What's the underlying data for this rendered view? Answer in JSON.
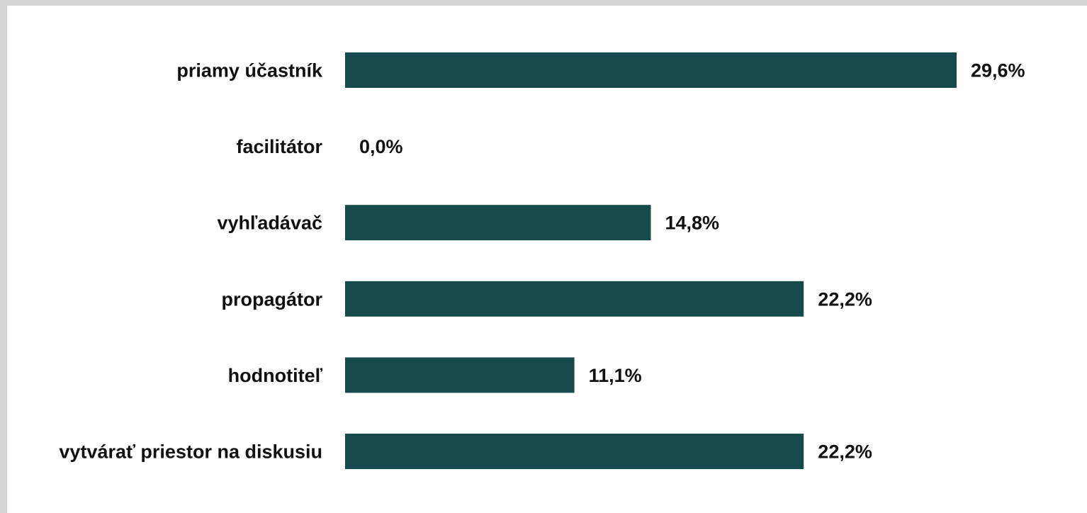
{
  "chart_data": {
    "type": "bar",
    "orientation": "horizontal",
    "categories": [
      "priamy účastník",
      "facilitátor",
      "vyhľadávač",
      "propagátor",
      "hodnotiteľ",
      "vytvárať priestor na diskusiu"
    ],
    "values": [
      29.6,
      0.0,
      14.8,
      22.2,
      11.1,
      22.2
    ],
    "value_labels": [
      "29,6%",
      "0,0%",
      "14,8%",
      "22,2%",
      "11,1%",
      "22,2%"
    ],
    "xlim": [
      0,
      29.6
    ],
    "grid": false,
    "legend": "none",
    "bar_color": "#174b4b",
    "background_color": "#ffffff",
    "frame_color": "#d4d4d4"
  }
}
